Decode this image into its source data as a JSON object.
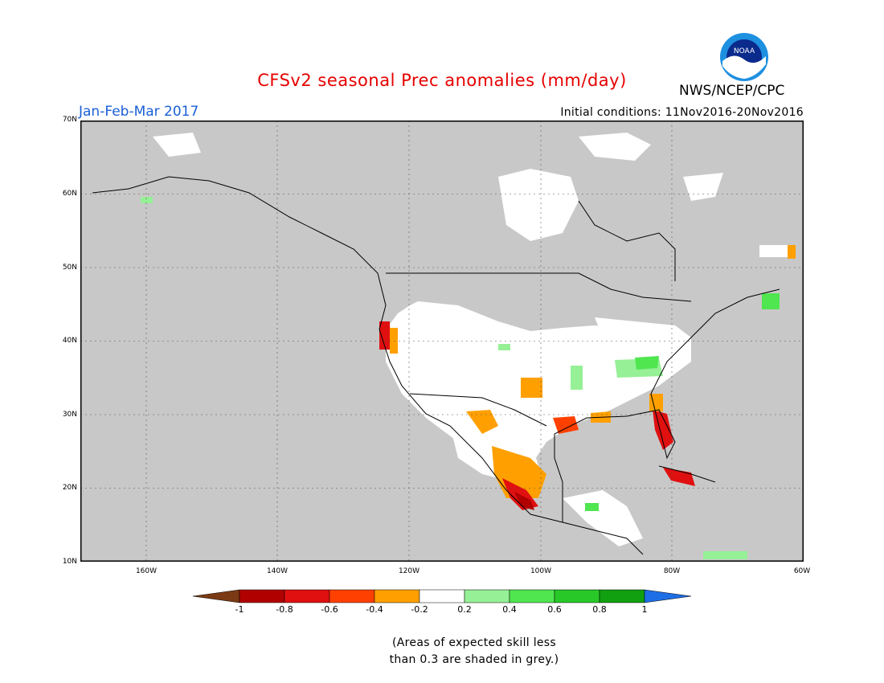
{
  "header": {
    "title": "CFSv2 seasonal Prec anomalies (mm/day)",
    "season": "Jan-Feb-Mar 2017",
    "initial_conditions": "Initial conditions: 11Nov2016-20Nov2016",
    "center": "NWS/NCEP/CPC",
    "logo_text": "NOAA"
  },
  "map": {
    "region": "North America",
    "lat_labels": [
      "70N",
      "60N",
      "50N",
      "40N",
      "30N",
      "20N",
      "10N"
    ],
    "lon_labels": [
      "160W",
      "140W",
      "120W",
      "100W",
      "80W",
      "60W"
    ],
    "lat_range": [
      10,
      70
    ],
    "lon_range": [
      -170,
      -60
    ],
    "gridlines": true,
    "colors": {
      "low_skill_grey": "#c8c8c8",
      "near_zero_white": "#ffffff",
      "land_outline": "#000000"
    }
  },
  "colorbar": {
    "ticks": [
      "-1",
      "-0.8",
      "-0.6",
      "-0.4",
      "-0.2",
      "0.2",
      "0.4",
      "0.6",
      "0.8",
      "1"
    ],
    "colors": [
      "#7b3a14",
      "#b00000",
      "#e01010",
      "#ff4000",
      "#ffa000",
      "#ffffff",
      "#96f096",
      "#50e650",
      "#28c828",
      "#10a010",
      "#1e6ee6"
    ]
  },
  "note": {
    "line1": "(Areas of expected skill less",
    "line2": "than 0.3 are shaded in grey.)"
  }
}
